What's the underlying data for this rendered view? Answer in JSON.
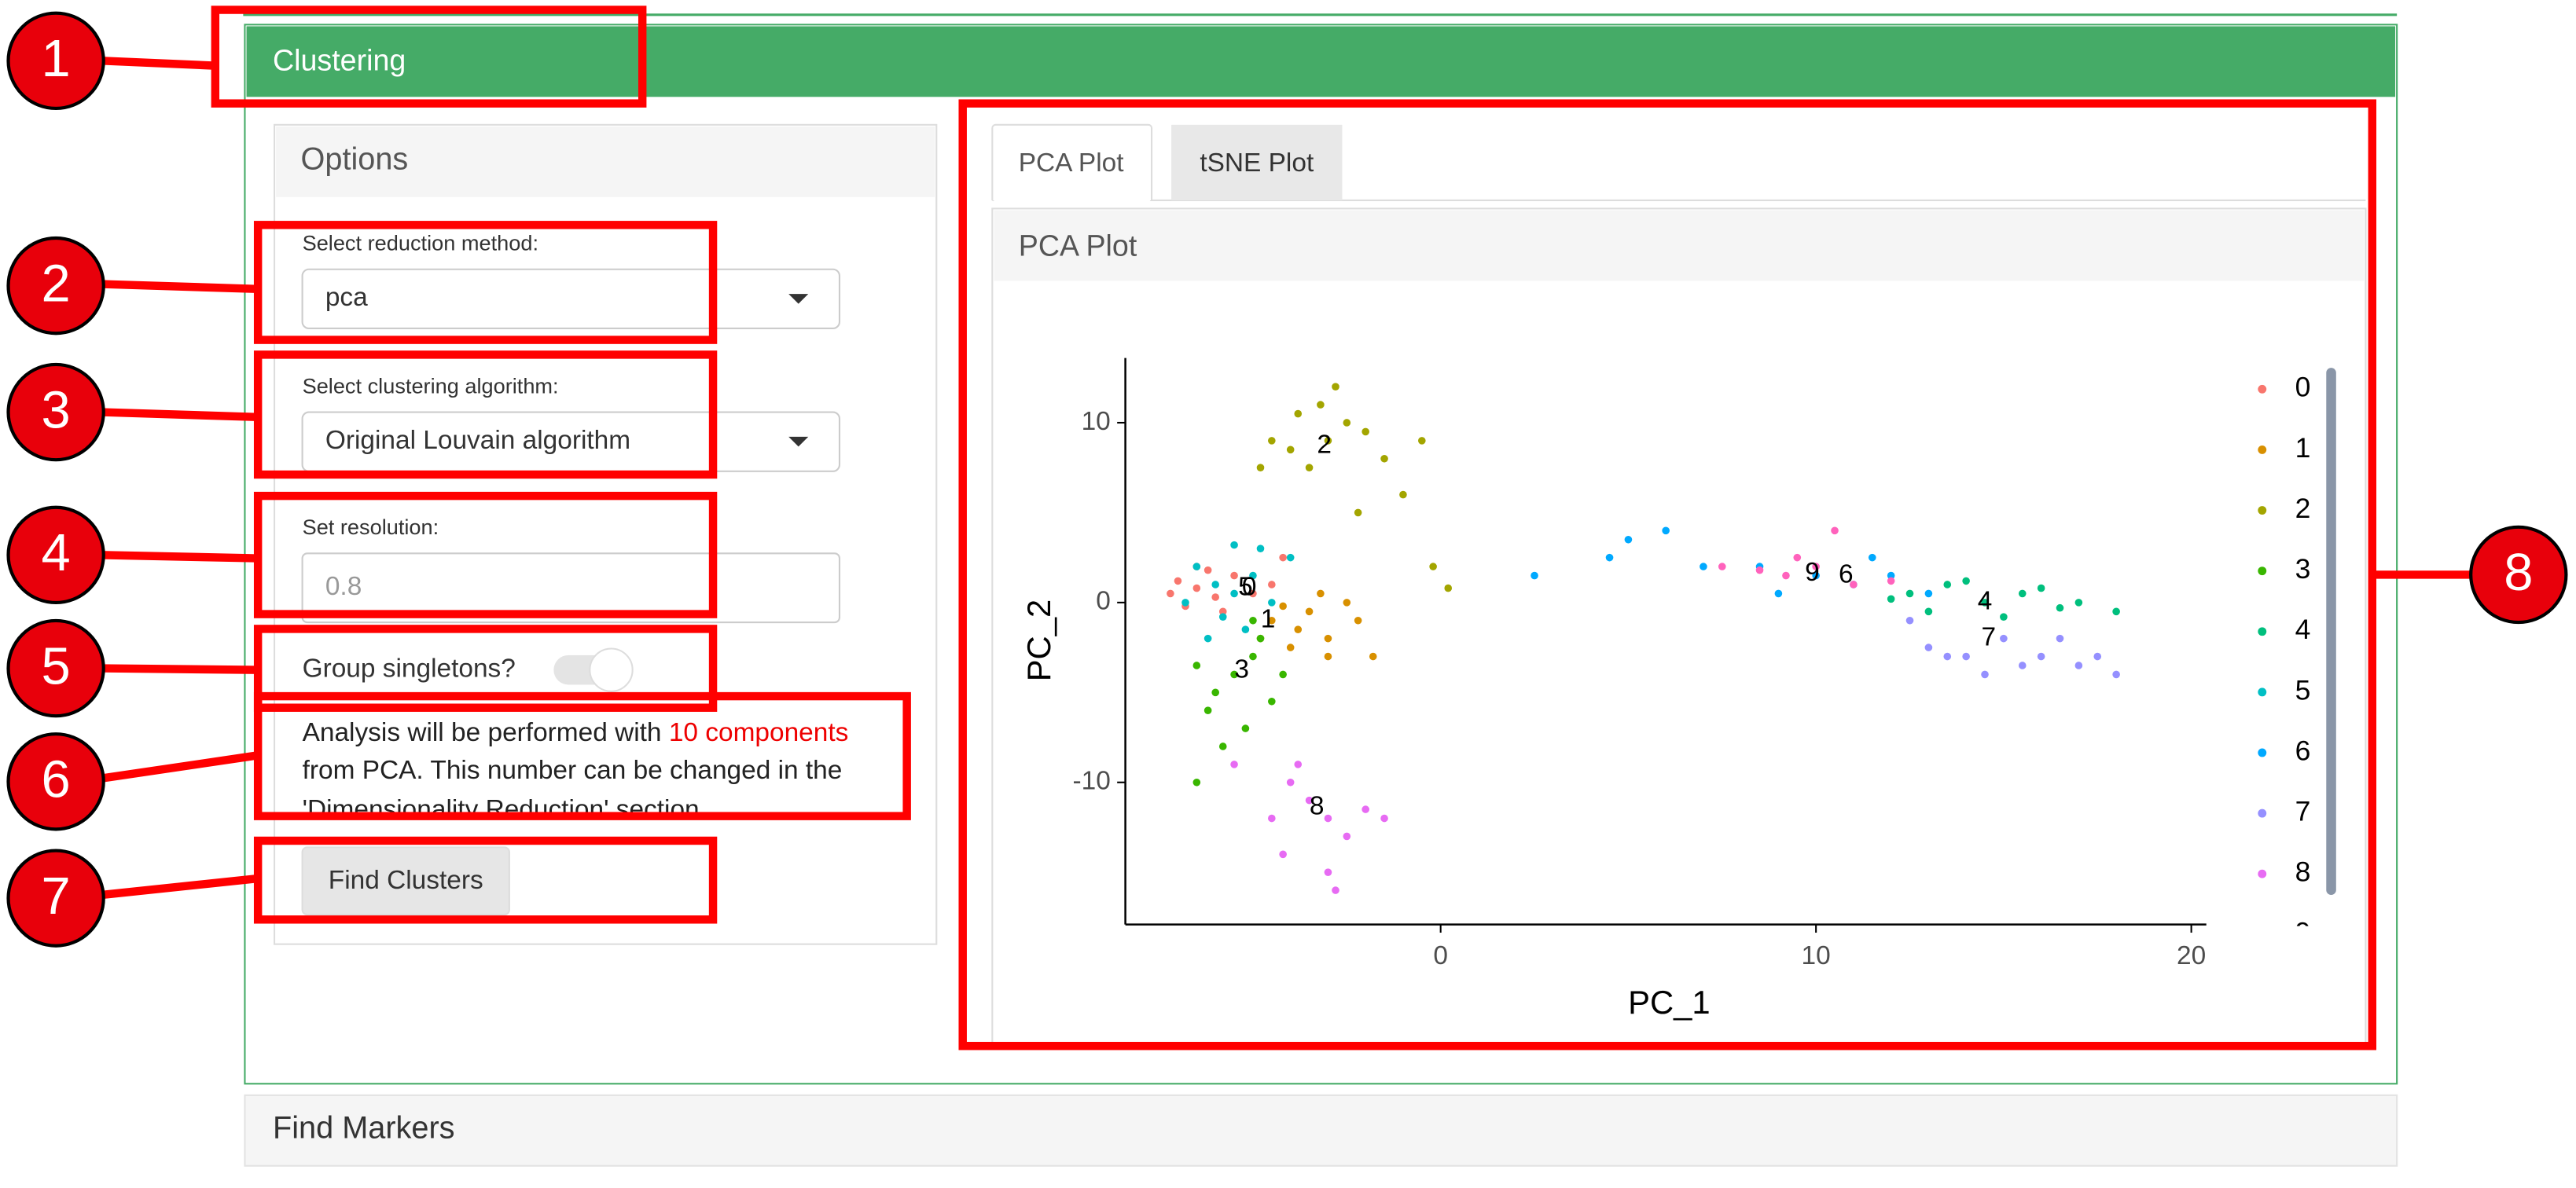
{
  "header": {
    "title": "Clustering"
  },
  "options": {
    "title": "Options",
    "reduction": {
      "label": "Select reduction method:",
      "value": "pca"
    },
    "algorithm": {
      "label": "Select clustering algorithm:",
      "value": "Original Louvain algorithm"
    },
    "resolution": {
      "label": "Set resolution:",
      "placeholder": "0.8"
    },
    "singletons": {
      "label": "Group singletons?"
    },
    "info": {
      "lines": [
        "Analysis will be performed with ",
        "from PCA. This number can be changed in the",
        "'Dimensionality Reduction' section."
      ],
      "highlight": "10 components"
    },
    "button": "Find Clusters"
  },
  "tabs": [
    "PCA Plot",
    "tSNE Plot"
  ],
  "panel": {
    "title": "PCA Plot"
  },
  "plot": {
    "type": "scatter",
    "xlabel": "PC_1",
    "ylabel": "PC_2",
    "xlim": [
      -8.4,
      20.4
    ],
    "ylim": [
      -17.9,
      13.6
    ],
    "xticks": [
      0,
      10,
      20
    ],
    "yticks": [
      -10,
      0,
      10
    ],
    "series": [
      {
        "name": "0",
        "color": "#F8766D",
        "center": [
          -5.1,
          0.8
        ],
        "x": [
          -6.5,
          -7,
          -6,
          -5.5,
          -6.8,
          -5,
          -6.2,
          -4.5,
          -7.2,
          -5.8,
          -4.2,
          -6.5
        ],
        "y": [
          0.8,
          1.2,
          0.3,
          1.5,
          -0.2,
          0.5,
          1.8,
          1,
          0.5,
          -0.5,
          2.5,
          2
        ]
      },
      {
        "name": "1",
        "color": "#D89000",
        "center": [
          -4.6,
          -1
        ],
        "x": [
          -4.5,
          -3.5,
          -3,
          -4,
          -2.5,
          -3.8,
          -4.8,
          -3.2,
          -2.2,
          -4.2,
          -3,
          -1.8
        ],
        "y": [
          -1,
          -0.5,
          -2,
          -2.5,
          0,
          -1.5,
          -2,
          0.5,
          -1,
          -0.2,
          -3,
          -3
        ]
      },
      {
        "name": "2",
        "color": "#A3A500",
        "center": [
          -3.1,
          8.7
        ],
        "x": [
          -3,
          -4,
          -2.5,
          -3.5,
          -2,
          -4.5,
          -1.5,
          -3.2,
          -2.8,
          -1,
          -0.2,
          0.2,
          -4.8,
          -2.2,
          -3.8,
          -0.5
        ],
        "y": [
          9,
          8.5,
          10,
          7.5,
          9.5,
          9,
          8,
          11,
          12,
          6,
          2,
          0.8,
          7.5,
          5,
          10.5,
          9
        ]
      },
      {
        "name": "3",
        "color": "#39B600",
        "center": [
          -5.3,
          -3.8
        ],
        "x": [
          -5.5,
          -5,
          -6,
          -4.5,
          -6.5,
          -5.2,
          -4.8,
          -6.2,
          -5.8,
          -4.2,
          -6.5,
          -5
        ],
        "y": [
          -4,
          -3,
          -5,
          -5.5,
          -3.5,
          -7,
          -2,
          -6,
          -8,
          -4,
          -10,
          -1
        ]
      },
      {
        "name": "4",
        "color": "#00BF7D",
        "center": [
          14.5,
          0
        ],
        "x": [
          12.5,
          13.5,
          14.5,
          15.5,
          16.5,
          17,
          13,
          14,
          15,
          16,
          18,
          12
        ],
        "y": [
          0.5,
          1,
          0,
          0.5,
          -0.3,
          0,
          -0.5,
          1.2,
          -0.8,
          0.8,
          -0.5,
          0.2
        ]
      },
      {
        "name": "5",
        "color": "#00BFC4",
        "center": [
          -5.2,
          0.8
        ],
        "x": [
          -6,
          -5.5,
          -5,
          -4.5,
          -6.5,
          -5.8,
          -4.8,
          -5.2,
          -6.8,
          -4,
          -5.5,
          -6.2
        ],
        "y": [
          1,
          0.5,
          1.5,
          0,
          2,
          -0.8,
          3,
          -1.5,
          0,
          2.5,
          3.2,
          -2
        ]
      },
      {
        "name": "6",
        "color": "#00A9FF",
        "center": [
          10.8,
          1.5
        ],
        "x": [
          5,
          7,
          8.5,
          10,
          11,
          12,
          13,
          9,
          11.5,
          2.5,
          4.5,
          6
        ],
        "y": [
          3.5,
          2,
          2,
          1.5,
          1,
          1.5,
          0.5,
          0.5,
          2.5,
          1.5,
          2.5,
          4
        ]
      },
      {
        "name": "7",
        "color": "#9590FF",
        "center": [
          14.6,
          -2
        ],
        "x": [
          13,
          14,
          15,
          16,
          17,
          18,
          14.5,
          15.5,
          13.5,
          16.5,
          12.5,
          17.5
        ],
        "y": [
          -2.5,
          -3,
          -2,
          -3,
          -3.5,
          -4,
          -4,
          -3.5,
          -3,
          -2,
          -1,
          -3
        ]
      },
      {
        "name": "8",
        "color": "#E76BF3",
        "center": [
          -3.3,
          -11.4
        ],
        "x": [
          -3.5,
          -3,
          -4,
          -2.5,
          -4.5,
          -2,
          -3,
          -3.8,
          -1.5,
          -2.8,
          -5.5,
          -4.2
        ],
        "y": [
          -11,
          -12,
          -10,
          -13,
          -12,
          -11.5,
          -15,
          -9,
          -12,
          -16,
          -9,
          -14
        ]
      },
      {
        "name": "9",
        "color": "#FF62BC",
        "center": [
          9.9,
          1.6
        ],
        "x": [
          9.2,
          10,
          8.5,
          11,
          9.5,
          10.5,
          7.5,
          12
        ],
        "y": [
          1.5,
          2,
          1.8,
          1,
          2.5,
          4,
          2,
          1.2
        ]
      }
    ]
  },
  "footer": {
    "title": "Find Markers"
  },
  "callouts": [
    "1",
    "2",
    "3",
    "4",
    "5",
    "6",
    "7",
    "8"
  ]
}
